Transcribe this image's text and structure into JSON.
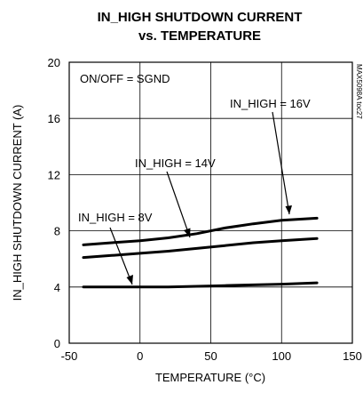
{
  "chart_data": {
    "type": "line",
    "title_lines": [
      "IN_HIGH SHUTDOWN CURRENT",
      "vs. TEMPERATURE"
    ],
    "xlabel": "TEMPERATURE (°C)",
    "ylabel": "IN_HIGH SHUTDOWN CURRENT (A)",
    "xlim": [
      -50,
      150
    ],
    "ylim": [
      0,
      20
    ],
    "xticks": [
      -50,
      0,
      50,
      100,
      150
    ],
    "yticks": [
      0,
      4,
      8,
      12,
      16,
      20
    ],
    "grid": true,
    "annotation_box": "ON/OFF = SGND",
    "figure_code": "MAX5098A toc27",
    "series": [
      {
        "name": "IN_HIGH = 16V",
        "x": [
          -40,
          -20,
          0,
          20,
          40,
          60,
          80,
          100,
          125
        ],
        "y": [
          7.0,
          7.15,
          7.3,
          7.5,
          7.8,
          8.2,
          8.5,
          8.75,
          8.9
        ]
      },
      {
        "name": "IN_HIGH = 14V",
        "x": [
          -40,
          -20,
          0,
          20,
          40,
          60,
          80,
          100,
          125
        ],
        "y": [
          6.1,
          6.25,
          6.4,
          6.55,
          6.75,
          6.95,
          7.15,
          7.3,
          7.45
        ]
      },
      {
        "name": "IN_HIGH = 8V",
        "x": [
          -40,
          -20,
          0,
          20,
          40,
          60,
          80,
          100,
          125
        ],
        "y": [
          4.0,
          4.0,
          4.0,
          4.0,
          4.05,
          4.1,
          4.15,
          4.2,
          4.3
        ]
      }
    ]
  }
}
